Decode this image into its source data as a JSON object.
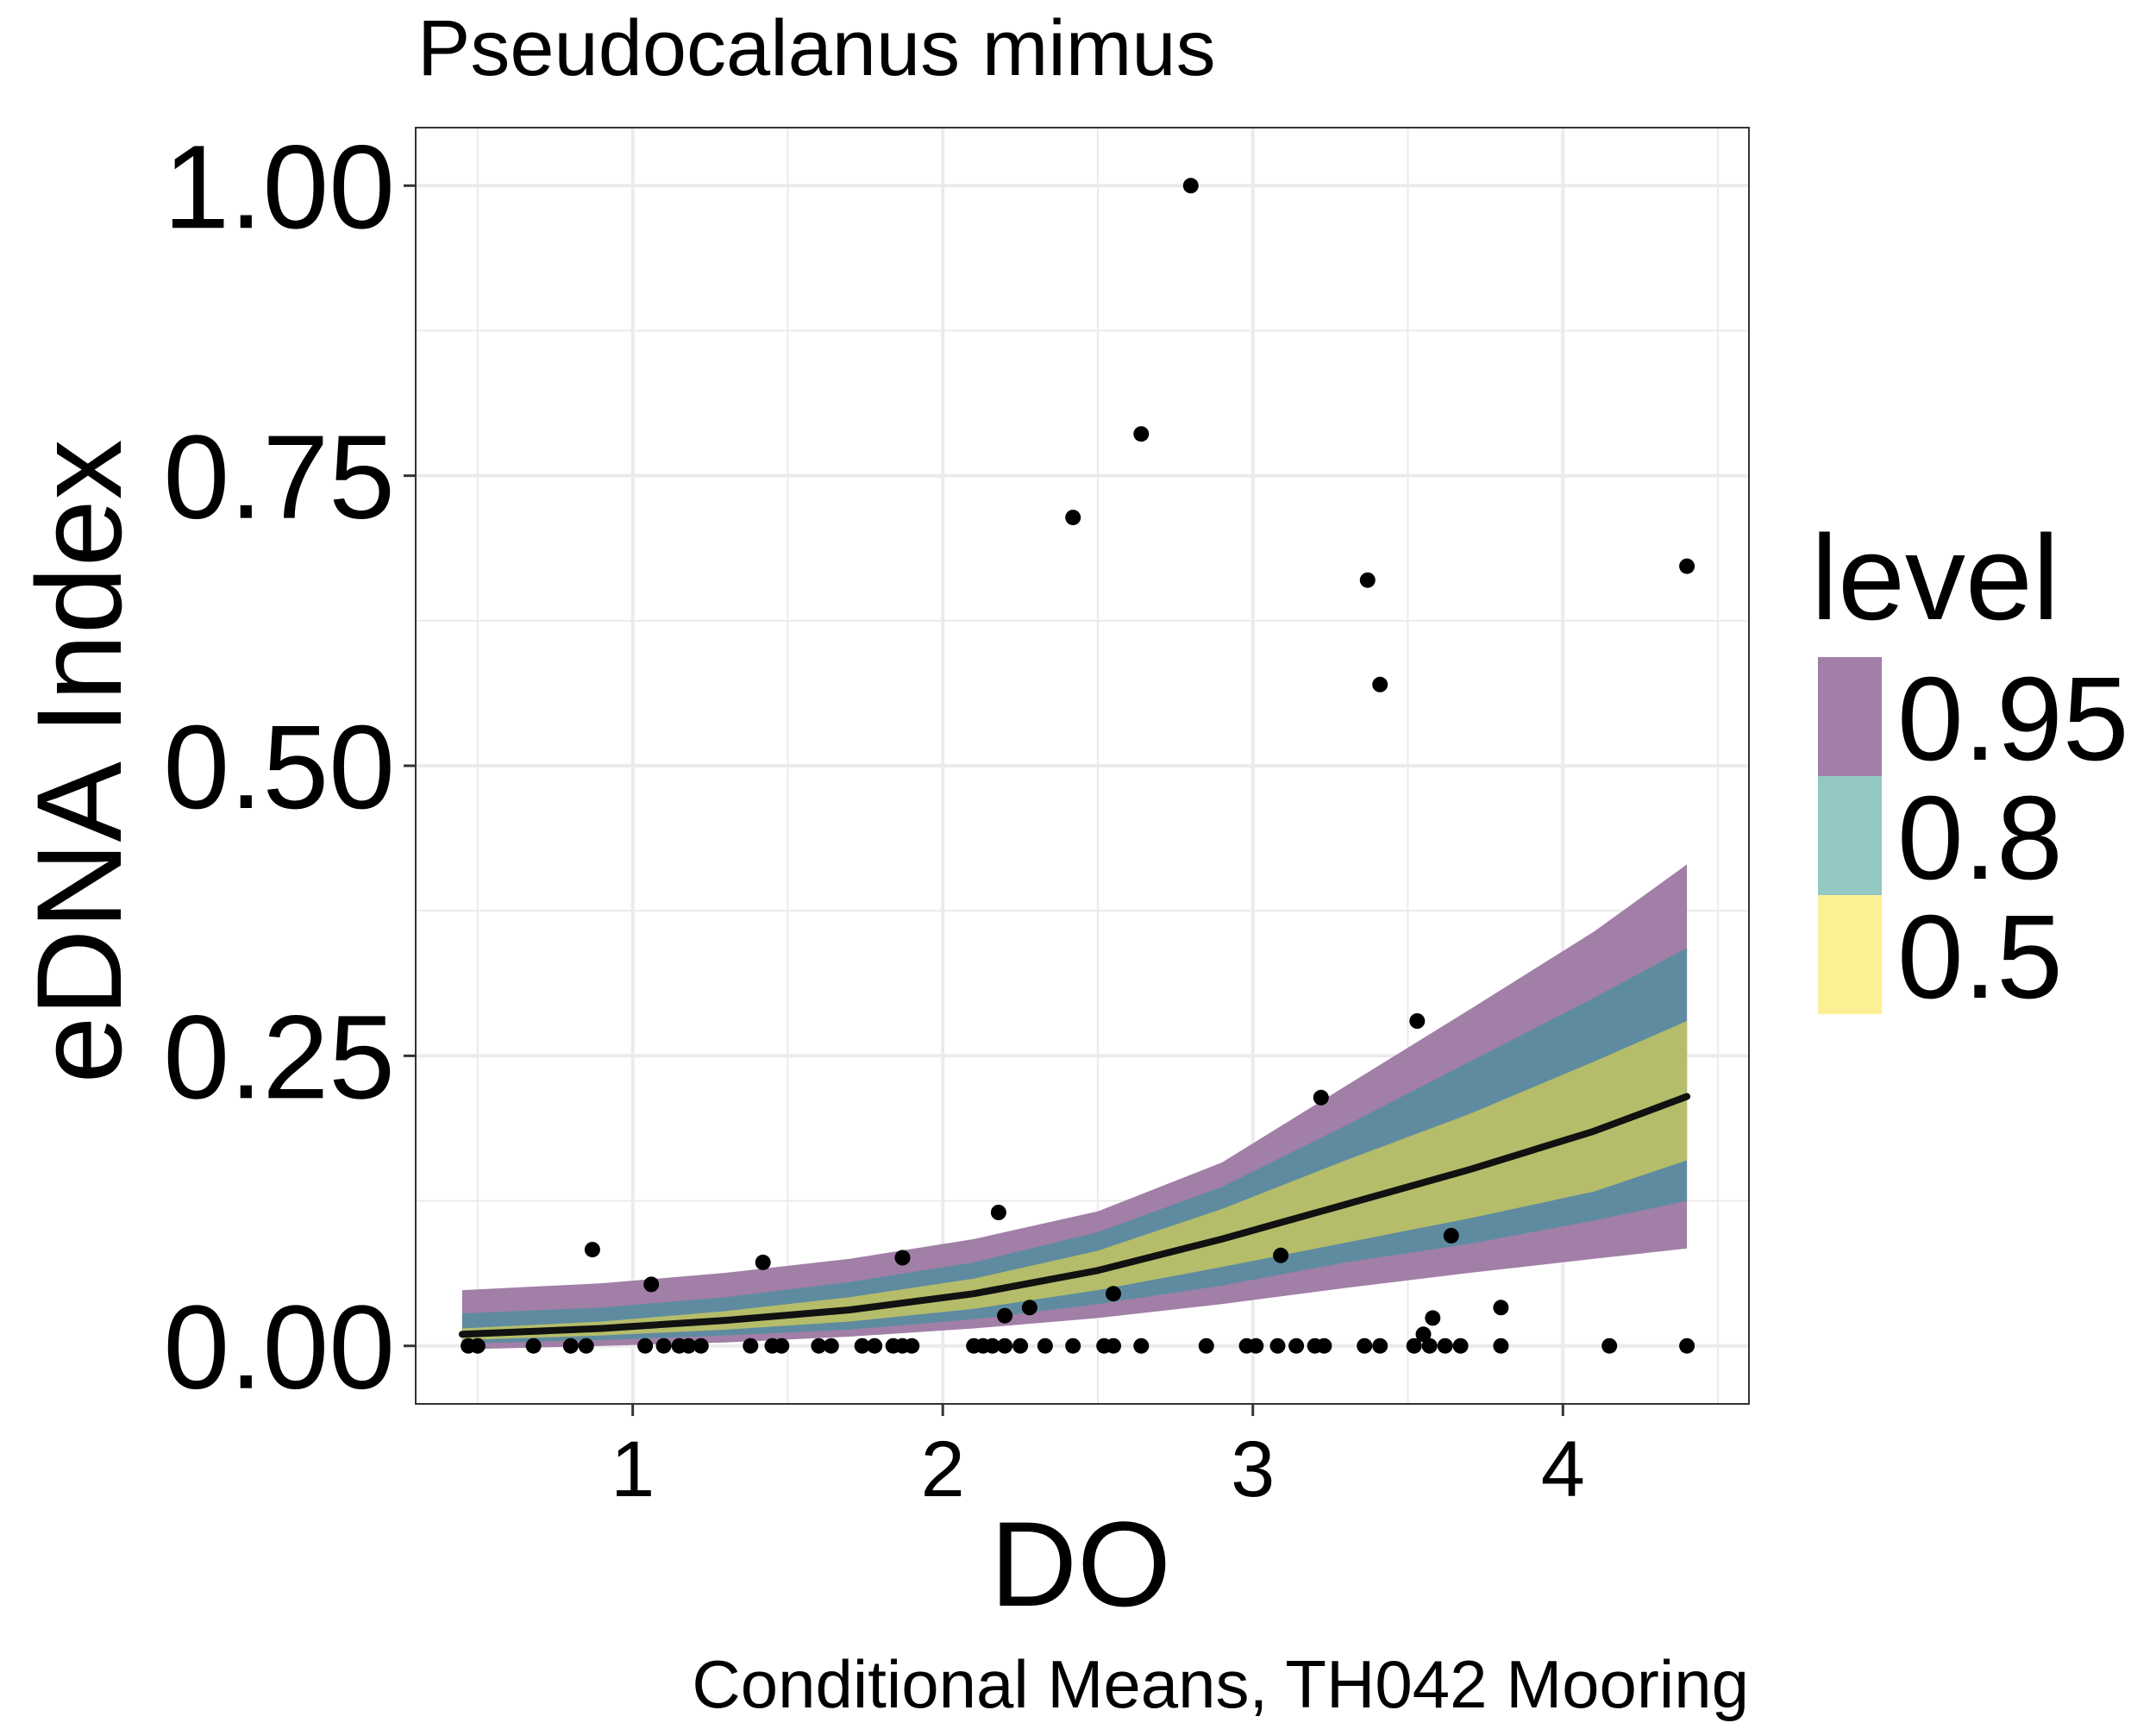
{
  "chart_data": {
    "type": "scatter",
    "title": "Pseudocalanus mimus",
    "caption": "Conditional Means, TH042 Mooring",
    "xlabel": "DO",
    "ylabel": "eDNA Index",
    "xlim": [
      0.3,
      4.6
    ],
    "ylim": [
      -0.05,
      1.05
    ],
    "x_ticks": [
      1,
      2,
      3,
      4
    ],
    "x_tick_labels": [
      "1",
      "2",
      "3",
      "4"
    ],
    "y_ticks": [
      0,
      0.25,
      0.5,
      0.75,
      1
    ],
    "y_tick_labels": [
      "0.00",
      "0.25",
      "0.50",
      "0.75",
      "1.00"
    ],
    "grid": true,
    "legend": {
      "title": "level",
      "position": "right",
      "entries": [
        {
          "label": "0.95",
          "color": "#a17fa7"
        },
        {
          "label": "0.8",
          "color": "#93c8c4"
        },
        {
          "label": "0.5",
          "color": "#fbf194"
        }
      ]
    },
    "colors": {
      "band_095": "#a17fa7",
      "band_080": "#5f8ba0",
      "band_050": "#b5bd6a",
      "line": "#111111",
      "points": "#000000",
      "grid": "#ebebeb",
      "panel_border": "#333333"
    },
    "fit": {
      "x": [
        0.45,
        0.9,
        1.3,
        1.7,
        2.1,
        2.5,
        2.9,
        3.3,
        3.7,
        4.1,
        4.4
      ],
      "mean": [
        0.01,
        0.015,
        0.022,
        0.031,
        0.045,
        0.065,
        0.092,
        0.122,
        0.152,
        0.185,
        0.215
      ],
      "lo_50": [
        0.005,
        0.009,
        0.014,
        0.021,
        0.032,
        0.048,
        0.068,
        0.089,
        0.11,
        0.133,
        0.16
      ],
      "hi_50": [
        0.015,
        0.021,
        0.03,
        0.042,
        0.058,
        0.082,
        0.118,
        0.16,
        0.2,
        0.245,
        0.28
      ],
      "lo_80": [
        0.002,
        0.005,
        0.009,
        0.014,
        0.023,
        0.036,
        0.052,
        0.072,
        0.088,
        0.108,
        0.125
      ],
      "hi_80": [
        0.028,
        0.033,
        0.042,
        0.055,
        0.072,
        0.098,
        0.137,
        0.19,
        0.245,
        0.3,
        0.343
      ],
      "lo_95": [
        -0.003,
        0.0,
        0.003,
        0.008,
        0.015,
        0.024,
        0.036,
        0.05,
        0.063,
        0.075,
        0.084
      ],
      "hi_95": [
        0.048,
        0.054,
        0.063,
        0.075,
        0.092,
        0.116,
        0.158,
        0.224,
        0.29,
        0.357,
        0.415
      ]
    },
    "points": {
      "x": [
        0.47,
        0.5,
        0.68,
        0.8,
        0.85,
        0.87,
        1.04,
        1.06,
        1.1,
        1.15,
        1.18,
        1.22,
        1.38,
        1.42,
        1.45,
        1.48,
        1.6,
        1.64,
        1.74,
        1.78,
        1.84,
        1.87,
        1.87,
        1.9,
        2.1,
        2.13,
        2.16,
        2.18,
        2.2,
        2.2,
        2.25,
        2.28,
        2.33,
        2.42,
        2.42,
        2.52,
        2.55,
        2.55,
        2.64,
        2.64,
        2.8,
        2.85,
        2.98,
        3.01,
        3.08,
        3.09,
        3.14,
        3.2,
        3.22,
        3.23,
        3.36,
        3.37,
        3.41,
        3.41,
        3.52,
        3.53,
        3.55,
        3.57,
        3.58,
        3.62,
        3.64,
        3.67,
        3.8,
        3.8,
        4.15,
        4.4,
        4.4
      ],
      "y": [
        0.0,
        0.0,
        0.0,
        0.0,
        0.0,
        0.083,
        0.0,
        0.053,
        0.0,
        0.0,
        0.0,
        0.0,
        0.0,
        0.072,
        0.0,
        0.0,
        0.0,
        0.0,
        0.0,
        0.0,
        0.0,
        0.0,
        0.076,
        0.0,
        0.0,
        0.0,
        0.0,
        0.115,
        0.0,
        0.026,
        0.0,
        0.033,
        0.0,
        0.0,
        0.714,
        0.0,
        0.0,
        0.045,
        0.0,
        0.786,
        1.0,
        0.0,
        0.0,
        0.0,
        0.0,
        0.078,
        0.0,
        0.0,
        0.214,
        0.0,
        0.0,
        0.66,
        0.0,
        0.57,
        0.0,
        0.28,
        0.01,
        0.0,
        0.024,
        0.0,
        0.095,
        0.0,
        0.0,
        0.033,
        0.0,
        0.0,
        0.672
      ]
    }
  }
}
